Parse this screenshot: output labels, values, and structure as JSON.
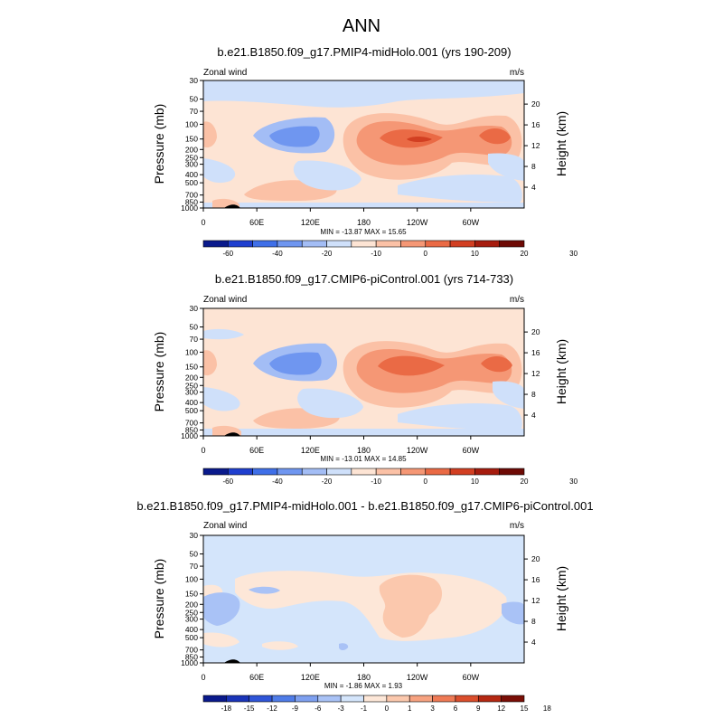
{
  "figure_title": "ANN",
  "colors": {
    "full_scale": [
      "#0a1a8c",
      "#1f3fcf",
      "#3f6fe8",
      "#6f96f0",
      "#a3bdf5",
      "#cfe0fa",
      "#fde4d4",
      "#fbc1a6",
      "#f59775",
      "#ea6a45",
      "#d23f22",
      "#a61c0e",
      "#6e0a05"
    ],
    "diff_scale": [
      "#0a1a8c",
      "#1a34b8",
      "#2f55d8",
      "#4f7ce8",
      "#7ea0f0",
      "#a9c2f6",
      "#d4e5fb",
      "#fde7d8",
      "#fbc8ad",
      "#f7a280",
      "#ef7a55",
      "#db4e2c",
      "#b52812",
      "#7a0e06"
    ],
    "topography": "#000000"
  },
  "chart_data": [
    {
      "type": "contour",
      "title": "b.e21.B1850.f09_g17.PMIP4-midHolo.001 (yrs 190-209)",
      "variable_label": "Zonal wind",
      "units_label": "m/s",
      "xlabel": "",
      "ylabel": "Pressure (mb)",
      "ylabel_right": "Height (km)",
      "x_ticks": [
        "0",
        "60E",
        "120E",
        "180",
        "120W",
        "60W"
      ],
      "y_ticks": [
        "30",
        "50",
        "70",
        "100",
        "150",
        "200",
        "250",
        "300",
        "400",
        "500",
        "700",
        "850",
        "1000"
      ],
      "right_ticks": [
        "20",
        "16",
        "12",
        "8",
        "4"
      ],
      "stats": "MIN = -13.87  MAX =  15.65",
      "colorbar": {
        "labels": [
          "-60",
          "-40",
          "-20",
          "-10",
          "0",
          "10",
          "20",
          "30"
        ],
        "scale": "full_scale"
      }
    },
    {
      "type": "contour",
      "title": "b.e21.B1850.f09_g17.CMIP6-piControl.001 (yrs 714-733)",
      "variable_label": "Zonal wind",
      "units_label": "m/s",
      "xlabel": "",
      "ylabel": "Pressure (mb)",
      "ylabel_right": "Height (km)",
      "x_ticks": [
        "0",
        "60E",
        "120E",
        "180",
        "120W",
        "60W"
      ],
      "y_ticks": [
        "30",
        "50",
        "70",
        "100",
        "150",
        "200",
        "250",
        "300",
        "400",
        "500",
        "700",
        "850",
        "1000"
      ],
      "right_ticks": [
        "20",
        "16",
        "12",
        "8",
        "4"
      ],
      "stats": "MIN = -13.01  MAX =  14.85",
      "colorbar": {
        "labels": [
          "-60",
          "-40",
          "-20",
          "-10",
          "0",
          "10",
          "20",
          "30"
        ],
        "scale": "full_scale"
      }
    },
    {
      "type": "contour",
      "title": "b.e21.B1850.f09_g17.PMIP4-midHolo.001 - b.e21.B1850.f09_g17.CMIP6-piControl.001",
      "variable_label": "Zonal wind",
      "units_label": "m/s",
      "xlabel": "",
      "ylabel": "Pressure (mb)",
      "ylabel_right": "Height (km)",
      "x_ticks": [
        "0",
        "60E",
        "120E",
        "180",
        "120W",
        "60W"
      ],
      "y_ticks": [
        "30",
        "50",
        "70",
        "100",
        "150",
        "200",
        "250",
        "300",
        "400",
        "500",
        "700",
        "850",
        "1000"
      ],
      "right_ticks": [
        "20",
        "16",
        "12",
        "8",
        "4"
      ],
      "stats": "MIN = -1.86  MAX =  1.93",
      "colorbar": {
        "labels": [
          "-18",
          "-15",
          "-12",
          "-9",
          "-6",
          "-3",
          "-1",
          "0",
          "1",
          "3",
          "6",
          "9",
          "12",
          "15",
          "18"
        ],
        "scale": "diff_scale"
      }
    }
  ]
}
